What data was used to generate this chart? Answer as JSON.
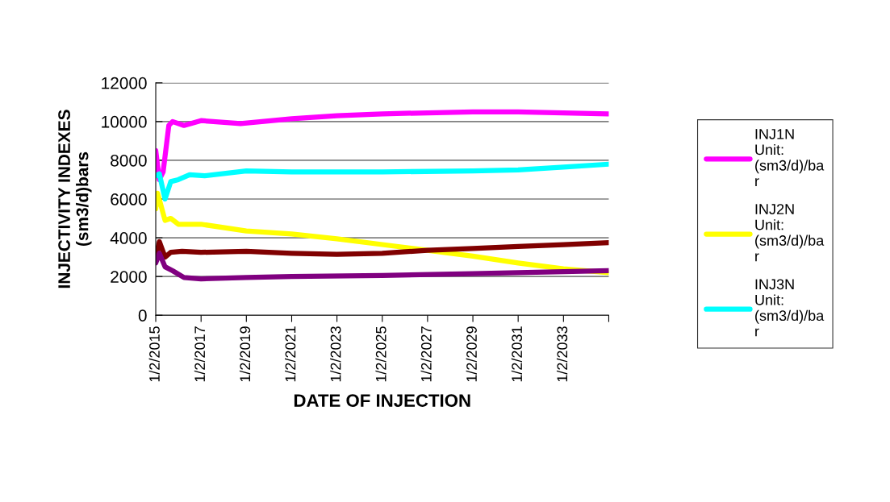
{
  "chart_data": {
    "type": "line",
    "xlabel": "DATE OF INJECTION",
    "ylabel": "INJECTIVITY INDEXES\n(sm3/d)bars",
    "ylim": [
      0,
      12000
    ],
    "yticks": [
      0,
      2000,
      4000,
      6000,
      8000,
      10000,
      12000
    ],
    "xlim": [
      "2015-01-02",
      "2035-01-02"
    ],
    "xticks": [
      {
        "value": "2015-01-02",
        "label": "1/2/2015"
      },
      {
        "value": "2017-01-02",
        "label": "1/2/2017"
      },
      {
        "value": "2019-01-02",
        "label": "1/2/2019"
      },
      {
        "value": "2021-01-02",
        "label": "1/2/2021"
      },
      {
        "value": "2023-01-02",
        "label": "1/2/2023"
      },
      {
        "value": "2025-01-02",
        "label": "1/2/2025"
      },
      {
        "value": "2027-01-02",
        "label": "1/2/2027"
      },
      {
        "value": "2029-01-02",
        "label": "1/2/2029"
      },
      {
        "value": "2031-01-02",
        "label": "1/2/2031"
      },
      {
        "value": "2033-01-02",
        "label": "1/2/2033"
      },
      {
        "value": "2035-01-02",
        "label": null
      }
    ],
    "grid": "y",
    "legend": "right",
    "marker": "none",
    "line_style": "solid",
    "series": [
      {
        "name": "INJ1N\nUnit:\n(sm3/d)/ba\nr",
        "color": "#ff00ff",
        "x": [
          "2015-01-02",
          "2015-03",
          "2015-05",
          "2015-08",
          "2015-10",
          "2016-04",
          "2017-01",
          "2018-10",
          "2021-01",
          "2023-01",
          "2025-01",
          "2027-01",
          "2029-01",
          "2031-01",
          "2033-01",
          "2035-01"
        ],
        "values": [
          8500,
          7000,
          7400,
          9800,
          10000,
          9800,
          10050,
          9900,
          10150,
          10300,
          10400,
          10450,
          10500,
          10500,
          10450,
          10400
        ]
      },
      {
        "name": "INJ2N\nUnit:\n(sm3/d)/ba\nr",
        "color": "#ffff00",
        "x": [
          "2015-01-02",
          "2015-02",
          "2015-06",
          "2015-09",
          "2016-01",
          "2017-01",
          "2019-01",
          "2021-01",
          "2023-01",
          "2025-01",
          "2027-01",
          "2029-01",
          "2031-01",
          "2033-01",
          "2035-01"
        ],
        "values": [
          5500,
          6300,
          4900,
          5000,
          4700,
          4700,
          4350,
          4200,
          3950,
          3650,
          3350,
          3050,
          2700,
          2400,
          2200
        ]
      },
      {
        "name": "INJ3N\nUnit:\n(sm3/d)/ba\nr",
        "color": "#00ffff",
        "x": [
          "2015-01-02",
          "2015-03",
          "2015-06",
          "2015-09",
          "2016-01",
          "2016-07",
          "2017-03",
          "2019-01",
          "2021-01",
          "2025-01",
          "2029-01",
          "2031-01",
          "2033-01",
          "2035-01"
        ],
        "values": [
          7200,
          7300,
          6000,
          6900,
          7000,
          7250,
          7200,
          7450,
          7400,
          7400,
          7450,
          7500,
          7650,
          7800
        ]
      },
      {
        "color": "#800000",
        "x": [
          "2015-01-02",
          "2015-03",
          "2015-06",
          "2015-09",
          "2016-03",
          "2017-01",
          "2019-01",
          "2021-01",
          "2023-01",
          "2025-01",
          "2027-01",
          "2029-01",
          "2031-01",
          "2033-01",
          "2035-01"
        ],
        "values": [
          3000,
          3800,
          3000,
          3250,
          3300,
          3250,
          3300,
          3200,
          3150,
          3200,
          3350,
          3450,
          3550,
          3650,
          3750
        ]
      },
      {
        "color": "#800080",
        "x": [
          "2015-01-02",
          "2015-03",
          "2015-06",
          "2015-10",
          "2016-04",
          "2017-01",
          "2019-01",
          "2021-01",
          "2025-01",
          "2029-01",
          "2033-01",
          "2035-01"
        ],
        "values": [
          2700,
          3200,
          2500,
          2300,
          1950,
          1880,
          1950,
          2000,
          2050,
          2150,
          2250,
          2300
        ]
      }
    ]
  }
}
